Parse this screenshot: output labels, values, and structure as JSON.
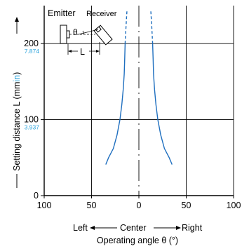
{
  "chart_data": {
    "type": "line",
    "xlabel": "Operating angle θ (°)",
    "ylabel": "Setting distance L (mm in)",
    "ylabel_main": "Setting distance L (mm",
    "ylabel_unit_in": "in",
    "ylabel_close": ")",
    "direction_labels": {
      "left": "Left",
      "center": "Center",
      "right": "Right"
    },
    "xlim": [
      -100,
      100
    ],
    "ylim": [
      0,
      250
    ],
    "x_ticks": [
      {
        "value": -100,
        "label": "100"
      },
      {
        "value": -50,
        "label": "50"
      },
      {
        "value": 0,
        "label": "0"
      },
      {
        "value": 50,
        "label": "50"
      },
      {
        "value": 100,
        "label": "100"
      }
    ],
    "y_ticks": [
      {
        "value": 0,
        "label": "0",
        "sub": ""
      },
      {
        "value": 100,
        "label": "100",
        "sub": "3.937"
      },
      {
        "value": 200,
        "label": "200",
        "sub": "7.874"
      }
    ],
    "grid": true,
    "series": [
      {
        "side": "left",
        "points": [
          [
            -35,
            41
          ],
          [
            -32,
            50
          ],
          [
            -27,
            62
          ],
          [
            -23,
            80
          ],
          [
            -20,
            100
          ],
          [
            -18,
            120
          ],
          [
            -16.5,
            140
          ],
          [
            -15.5,
            160
          ],
          [
            -15,
            180
          ],
          [
            -14.5,
            200
          ],
          [
            -13.5,
            225
          ],
          [
            -12.5,
            245
          ]
        ],
        "dashed_from_y": 200
      },
      {
        "side": "right",
        "points": [
          [
            35,
            41
          ],
          [
            32,
            50
          ],
          [
            27,
            62
          ],
          [
            23,
            80
          ],
          [
            20,
            100
          ],
          [
            18,
            120
          ],
          [
            16.5,
            140
          ],
          [
            15.5,
            160
          ],
          [
            15,
            180
          ],
          [
            14.5,
            200
          ],
          [
            13.5,
            225
          ],
          [
            12.5,
            245
          ]
        ],
        "dashed_from_y": 200
      }
    ],
    "diagram": {
      "emitter_label": "Emitter",
      "receiver_label": "Receiver",
      "theta_label": "θ",
      "distance_label": "L"
    },
    "colors": {
      "curve": "#1f6fbf",
      "axis": "#000000",
      "grid": "#000000",
      "accent_unit": "#2aa3dc"
    }
  }
}
